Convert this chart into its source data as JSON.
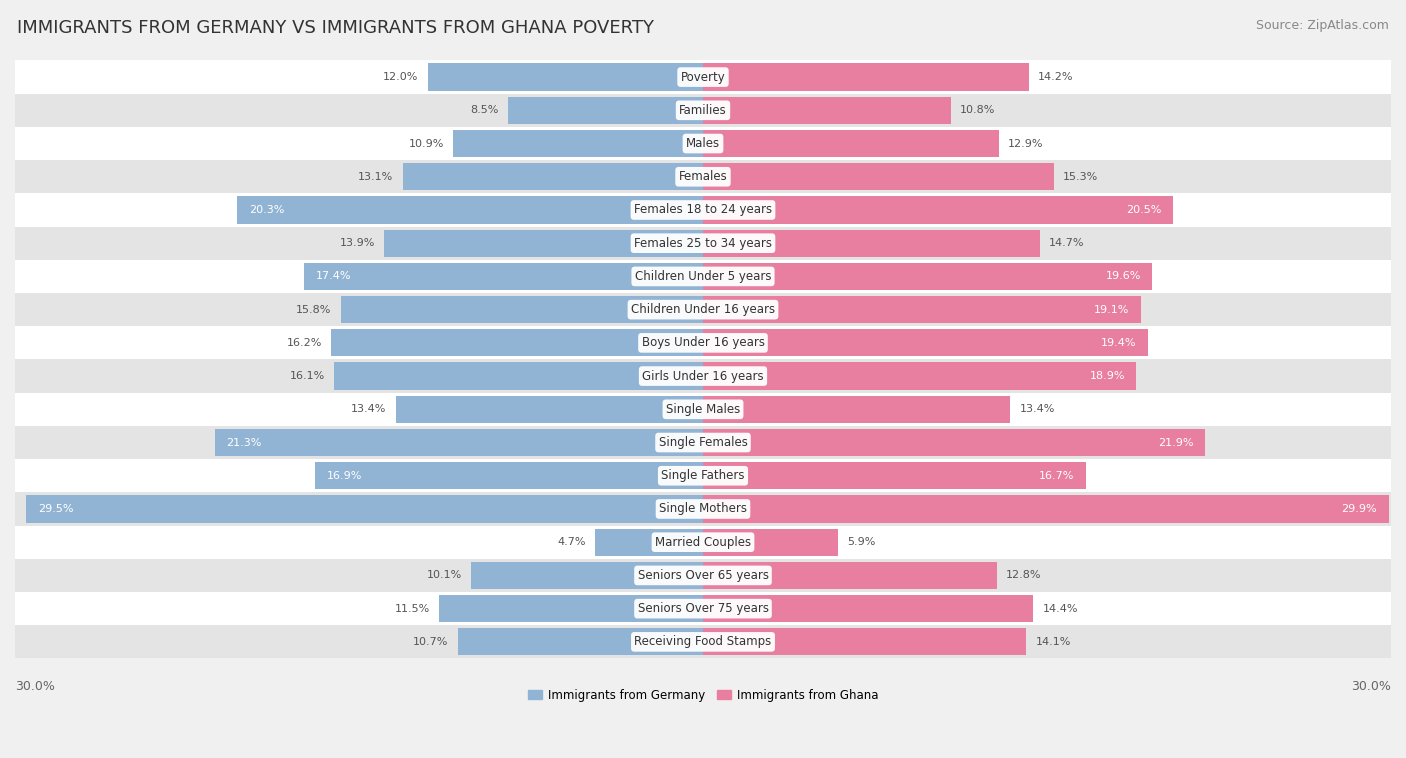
{
  "title": "IMMIGRANTS FROM GERMANY VS IMMIGRANTS FROM GHANA POVERTY",
  "source": "Source: ZipAtlas.com",
  "categories": [
    "Poverty",
    "Families",
    "Males",
    "Females",
    "Females 18 to 24 years",
    "Females 25 to 34 years",
    "Children Under 5 years",
    "Children Under 16 years",
    "Boys Under 16 years",
    "Girls Under 16 years",
    "Single Males",
    "Single Females",
    "Single Fathers",
    "Single Mothers",
    "Married Couples",
    "Seniors Over 65 years",
    "Seniors Over 75 years",
    "Receiving Food Stamps"
  ],
  "germany_values": [
    12.0,
    8.5,
    10.9,
    13.1,
    20.3,
    13.9,
    17.4,
    15.8,
    16.2,
    16.1,
    13.4,
    21.3,
    16.9,
    29.5,
    4.7,
    10.1,
    11.5,
    10.7
  ],
  "ghana_values": [
    14.2,
    10.8,
    12.9,
    15.3,
    20.5,
    14.7,
    19.6,
    19.1,
    19.4,
    18.9,
    13.4,
    21.9,
    16.7,
    29.9,
    5.9,
    12.8,
    14.4,
    14.1
  ],
  "germany_color": "#92b4d4",
  "ghana_color": "#e87fa0",
  "germany_label": "Immigrants from Germany",
  "ghana_label": "Immigrants from Ghana",
  "xlim": 30.0,
  "background_color": "#f0f0f0",
  "row_bg_light": "#ffffff",
  "row_bg_dark": "#e4e4e4",
  "title_fontsize": 13,
  "source_fontsize": 9,
  "label_fontsize": 8.5,
  "value_fontsize": 8.0,
  "white_text_threshold": 0.55
}
